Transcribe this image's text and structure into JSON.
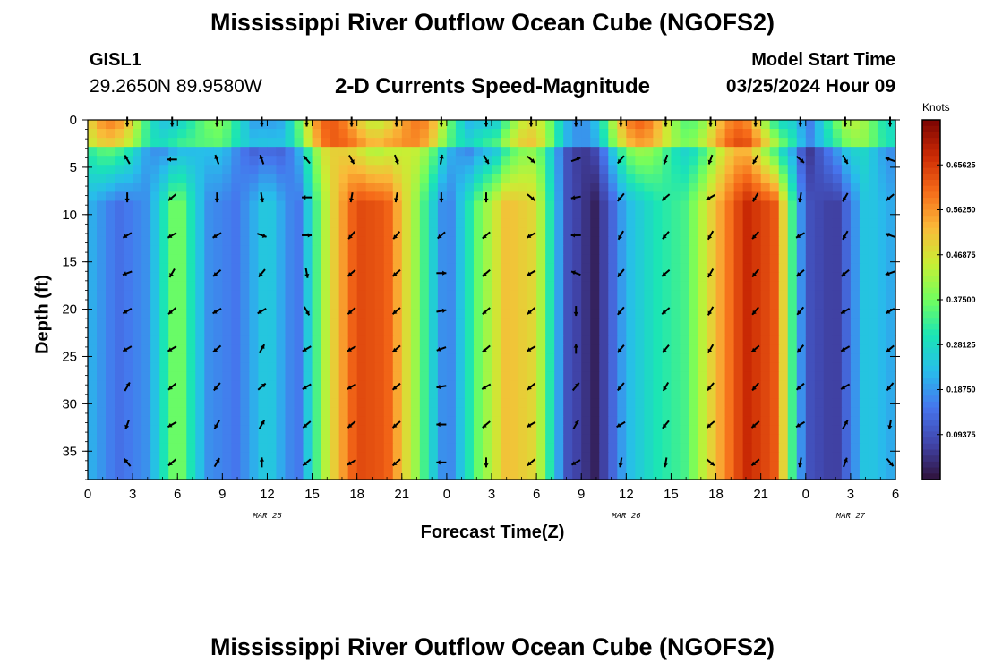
{
  "header": {
    "title": "Mississippi River Outflow Ocean Cube (NGOFS2)",
    "station": "GISL1",
    "coords": "29.2650N  89.9580W",
    "subtitle": "2-D Currents Speed-Magnitude",
    "model_start_label": "Model Start Time",
    "model_start_value": "03/25/2024 Hour 09"
  },
  "footer": {
    "title": "Mississippi River Outflow Ocean Cube (NGOFS2)"
  },
  "chart_data": {
    "type": "heatmap",
    "title": "2-D Currents Speed-Magnitude",
    "xlabel": "Forecast Time(Z)",
    "ylabel": "Depth (ft)",
    "x_ticks": [
      "0",
      "3",
      "6",
      "9",
      "12",
      "15",
      "18",
      "21",
      "0",
      "3",
      "6",
      "9",
      "12",
      "15",
      "18",
      "21",
      "0",
      "3",
      "6"
    ],
    "x_range_hours": [
      0,
      54
    ],
    "date_labels": [
      {
        "text": "MAR 25",
        "hour": 12
      },
      {
        "text": "MAR 26",
        "hour": 36
      },
      {
        "text": "MAR 27",
        "hour": 51
      }
    ],
    "y_ticks": [
      0,
      5,
      10,
      15,
      20,
      25,
      30,
      35
    ],
    "y_range_ft": [
      0,
      38
    ],
    "y_reversed": true,
    "colorbar": {
      "unit": "Knots",
      "ticks": [
        "0.65625",
        "0.56250",
        "0.46875",
        "0.37500",
        "0.28125",
        "0.18750",
        "0.09375"
      ],
      "range": [
        0,
        0.75
      ],
      "colormap": "turbo"
    },
    "speed_profile_hours": [
      0,
      2,
      4,
      6,
      8,
      10,
      12,
      14,
      16,
      18,
      20,
      22,
      24,
      26,
      28,
      30,
      32,
      34,
      36,
      38,
      40,
      42,
      44,
      46,
      48,
      50,
      52,
      54
    ],
    "speed_profile_knots": [
      0.22,
      0.14,
      0.18,
      0.4,
      0.18,
      0.15,
      0.26,
      0.14,
      0.45,
      0.64,
      0.62,
      0.4,
      0.14,
      0.36,
      0.52,
      0.48,
      0.1,
      0.02,
      0.22,
      0.3,
      0.34,
      0.52,
      0.68,
      0.62,
      0.1,
      0.06,
      0.25,
      0.2
    ],
    "vector_depths_ft": [
      0,
      4,
      8,
      12,
      16,
      20,
      24,
      28,
      32,
      36
    ],
    "vector_hours": [
      3,
      6,
      9,
      12,
      15,
      18,
      21,
      24,
      27,
      30,
      33,
      36,
      39,
      42,
      45,
      48,
      51,
      54
    ],
    "vector_directions_deg": [
      [
        90,
        90,
        90,
        90,
        90,
        90,
        90,
        90,
        90,
        90,
        90,
        90,
        90,
        90,
        90,
        90,
        90,
        90
      ],
      [
        240,
        180,
        250,
        250,
        230,
        60,
        70,
        280,
        60,
        40,
        340,
        130,
        110,
        110,
        120,
        40,
        60,
        200
      ],
      [
        90,
        140,
        90,
        80,
        180,
        100,
        100,
        90,
        90,
        40,
        170,
        130,
        140,
        150,
        120,
        100,
        120,
        140
      ],
      [
        150,
        150,
        150,
        20,
        0,
        130,
        130,
        140,
        140,
        150,
        180,
        120,
        130,
        120,
        130,
        150,
        120,
        200
      ],
      [
        160,
        120,
        140,
        130,
        80,
        140,
        140,
        0,
        140,
        150,
        200,
        130,
        140,
        120,
        130,
        140,
        140,
        160
      ],
      [
        150,
        140,
        150,
        150,
        60,
        140,
        140,
        350,
        140,
        140,
        90,
        130,
        140,
        120,
        130,
        130,
        150,
        150
      ],
      [
        150,
        150,
        140,
        300,
        150,
        150,
        140,
        160,
        140,
        150,
        270,
        130,
        130,
        120,
        140,
        130,
        150,
        140
      ],
      [
        300,
        140,
        130,
        320,
        150,
        150,
        140,
        170,
        150,
        140,
        310,
        130,
        120,
        130,
        130,
        140,
        150,
        130
      ],
      [
        110,
        150,
        120,
        300,
        140,
        140,
        140,
        180,
        140,
        150,
        300,
        150,
        130,
        140,
        140,
        150,
        300,
        100
      ],
      [
        230,
        140,
        300,
        270,
        140,
        150,
        140,
        180,
        90,
        140,
        150,
        100,
        100,
        40,
        140,
        100,
        290,
        50
      ]
    ]
  }
}
